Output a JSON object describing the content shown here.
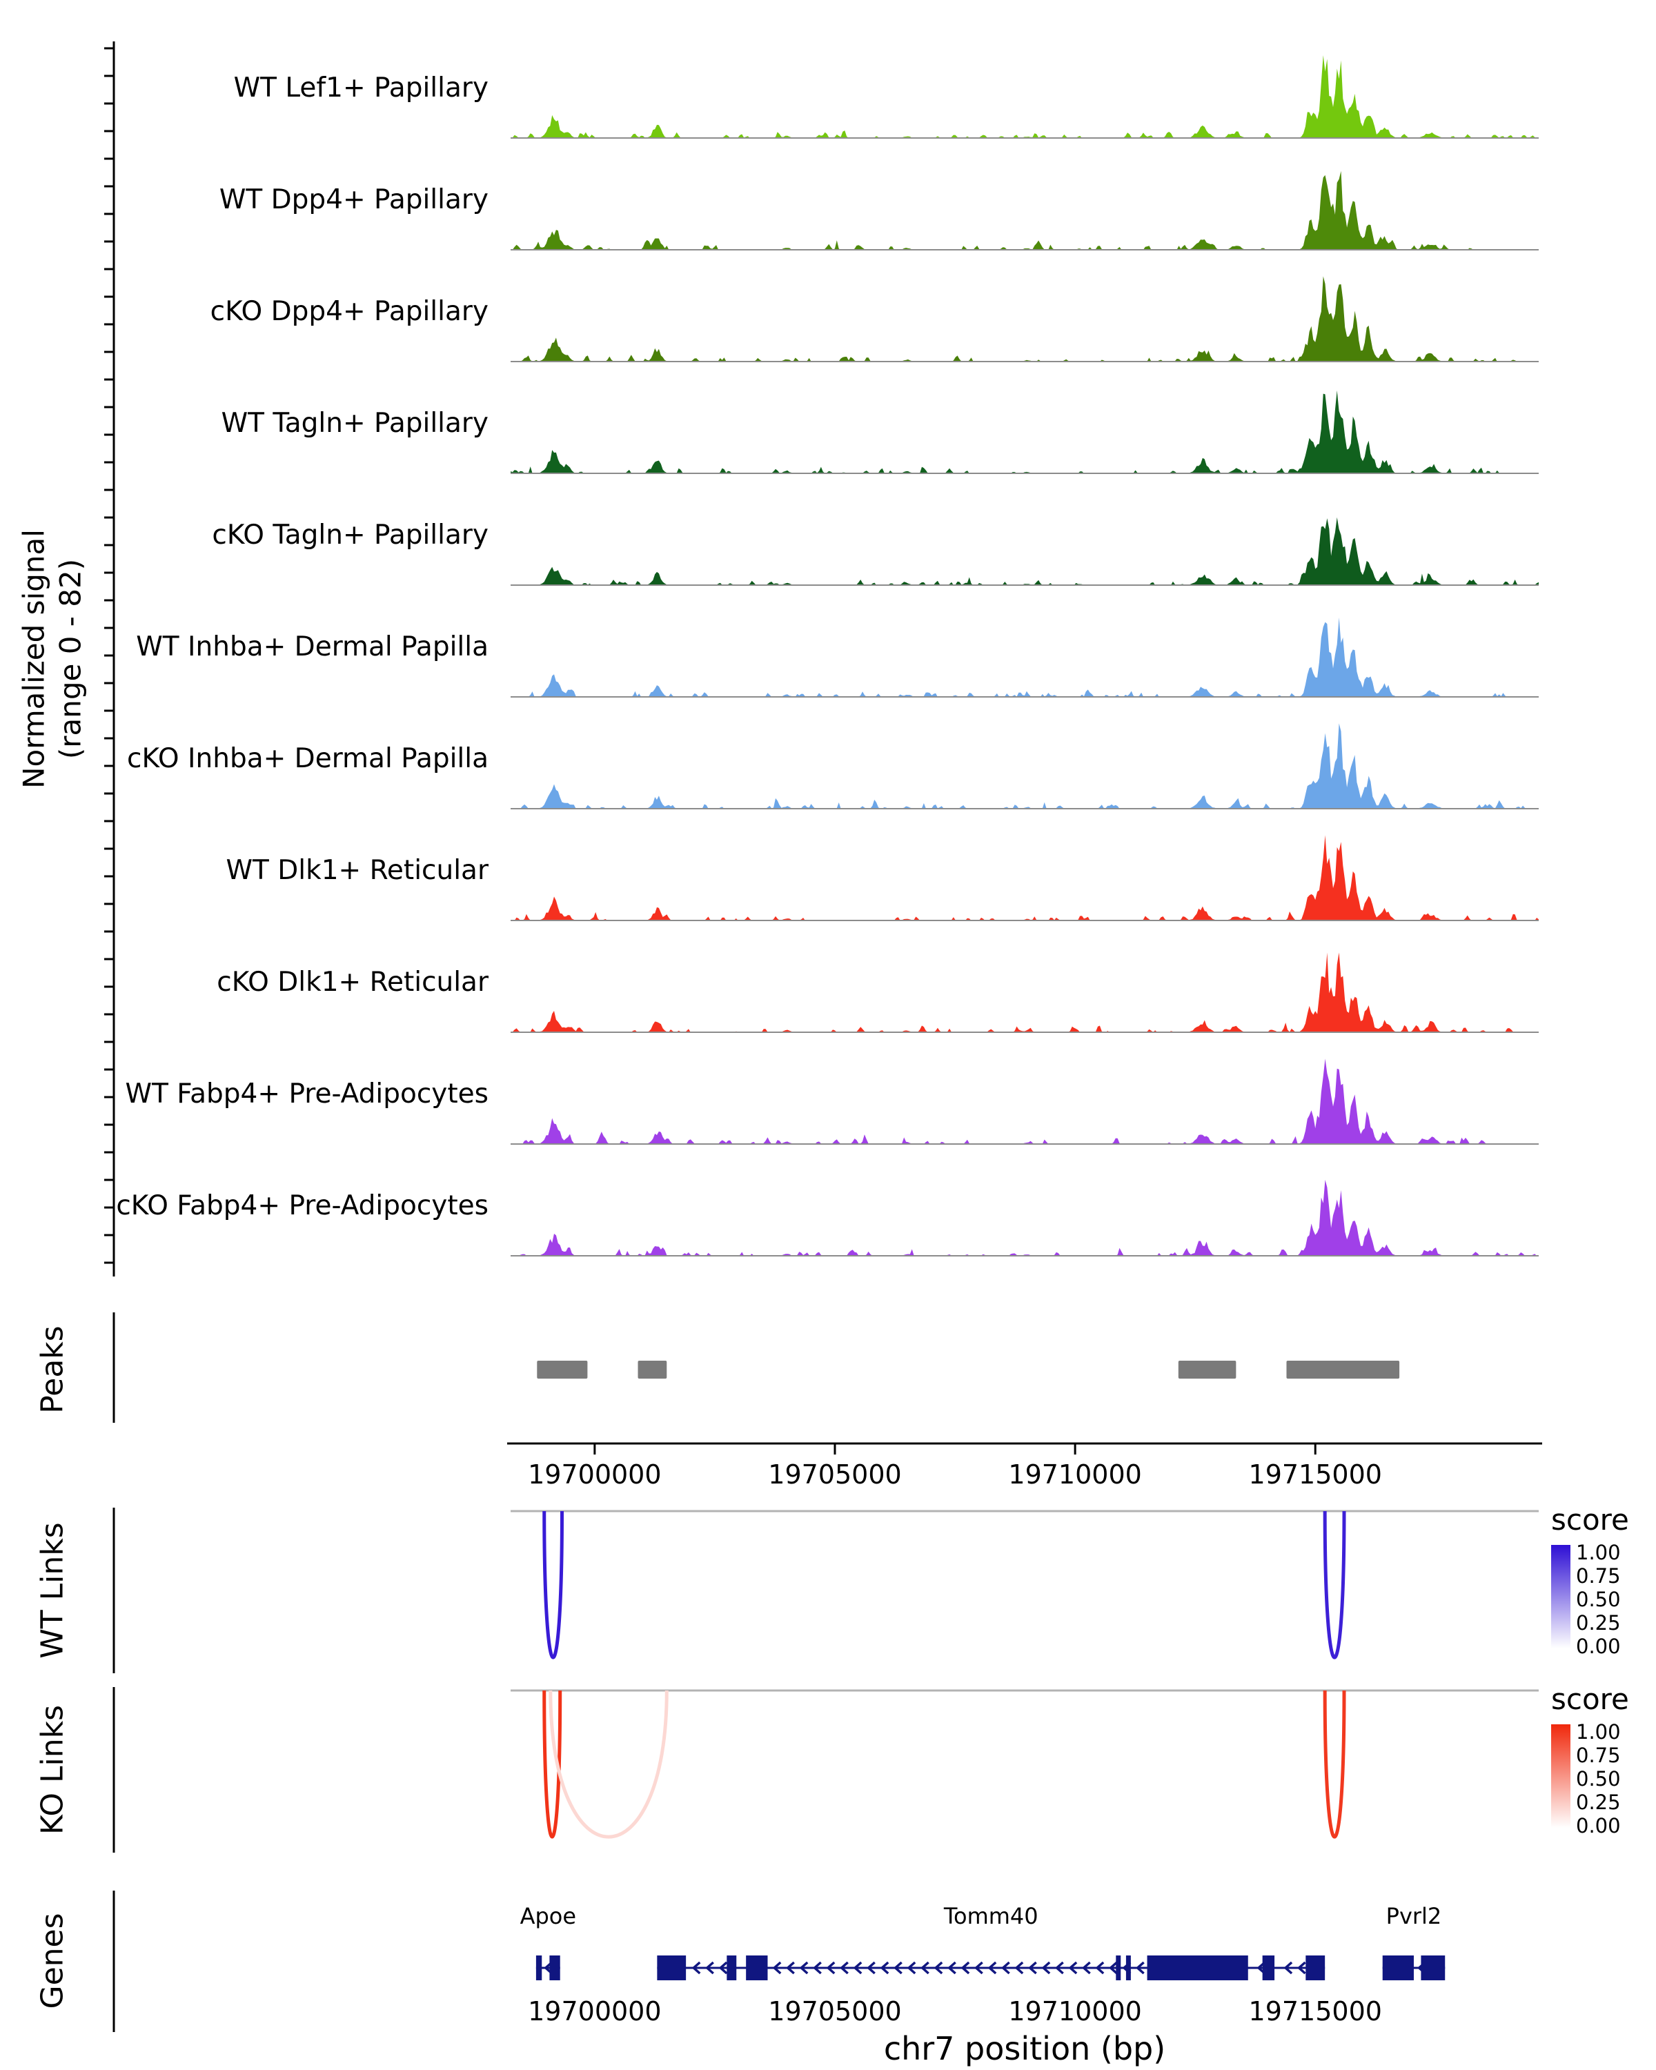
{
  "y_axis": {
    "label_line1": "Normalized signal",
    "label_line2": "(range 0 - 82)"
  },
  "x_axis": {
    "title": "chr7 position (bp)",
    "ticks": [
      19700000,
      19705000,
      19710000,
      19715000
    ],
    "tick_labels": [
      "19700000",
      "19705000",
      "19710000",
      "19715000"
    ]
  },
  "sections": {
    "peaks": "Peaks",
    "wt_links": "WT Links",
    "ko_links": "KO Links",
    "genes": "Genes"
  },
  "chart_data": {
    "type": "area",
    "title": "",
    "region": {
      "chrom": "chr7",
      "start": 19698250,
      "end": 19719650
    },
    "signal_range": [
      0,
      82
    ],
    "tracks": [
      {
        "name": "WT Lef1+ Papillary",
        "color": "#74C80E",
        "scale": 1.0
      },
      {
        "name": "WT Dpp4+ Papillary",
        "color": "#4E8A0A",
        "scale": 0.97
      },
      {
        "name": "cKO Dpp4+ Papillary",
        "color": "#497F08",
        "scale": 1.0
      },
      {
        "name": "WT Tagln+ Papillary",
        "color": "#11611E",
        "scale": 1.05
      },
      {
        "name": "cKO Tagln+ Papillary",
        "color": "#0F5B1D",
        "scale": 0.92
      },
      {
        "name": "WT Inhba+ Dermal Papilla",
        "color": "#6CA6E8",
        "scale": 0.95
      },
      {
        "name": "cKO Inhba+ Dermal Papilla",
        "color": "#6CA6E8",
        "scale": 1.02
      },
      {
        "name": "WT Dlk1+ Reticular",
        "color": "#F5301F",
        "scale": 0.95
      },
      {
        "name": "cKO Dlk1+ Reticular",
        "color": "#F5301F",
        "scale": 0.93
      },
      {
        "name": "WT Fabp4+ Pre-Adipocytes",
        "color": "#A040E8",
        "scale": 1.0
      },
      {
        "name": "cKO Fabp4+ Pre-Adipocytes",
        "color": "#A040E8",
        "scale": 0.9
      }
    ],
    "signal_profile": [
      {
        "c": 19699150,
        "s": 110,
        "h": 0.24
      },
      {
        "c": 19699450,
        "s": 60,
        "h": 0.06
      },
      {
        "c": 19701300,
        "s": 80,
        "h": 0.14
      },
      {
        "c": 19704000,
        "s": 60,
        "h": 0.03
      },
      {
        "c": 19706500,
        "s": 60,
        "h": 0.025
      },
      {
        "c": 19709000,
        "s": 60,
        "h": 0.02
      },
      {
        "c": 19712650,
        "s": 110,
        "h": 0.13
      },
      {
        "c": 19713350,
        "s": 80,
        "h": 0.06
      },
      {
        "c": 19714900,
        "s": 80,
        "h": 0.35
      },
      {
        "c": 19715200,
        "s": 90,
        "h": 0.95
      },
      {
        "c": 19715500,
        "s": 90,
        "h": 0.85
      },
      {
        "c": 19715800,
        "s": 80,
        "h": 0.55
      },
      {
        "c": 19716100,
        "s": 80,
        "h": 0.32
      },
      {
        "c": 19716450,
        "s": 90,
        "h": 0.13
      },
      {
        "c": 19717400,
        "s": 110,
        "h": 0.07
      }
    ],
    "peaks": [
      [
        19698800,
        19699850
      ],
      [
        19700900,
        19701500
      ],
      [
        19712150,
        19713350
      ],
      [
        19714400,
        19716750
      ]
    ],
    "peak_color": "#7A7A7A",
    "wt_links": {
      "legend_title": "score",
      "legend_ticks": [
        "1.00",
        "0.75",
        "0.50",
        "0.25",
        "0.00"
      ],
      "high_color": "#2E0FD4",
      "links": [
        {
          "start": 19698950,
          "end": 19699320,
          "score": 0.95
        },
        {
          "start": 19715200,
          "end": 19715600,
          "score": 0.93
        }
      ]
    },
    "ko_links": {
      "legend_title": "score",
      "legend_ticks": [
        "1.00",
        "0.75",
        "0.50",
        "0.25",
        "0.00"
      ],
      "high_color": "#F0280C",
      "links": [
        {
          "start": 19698950,
          "end": 19699280,
          "score": 0.95
        },
        {
          "start": 19699080,
          "end": 19701500,
          "score": 0.18
        },
        {
          "start": 19715200,
          "end": 19715600,
          "score": 0.92
        }
      ]
    },
    "genes": {
      "color": "#101680",
      "items": [
        {
          "name": "Apoe",
          "start": 19698780,
          "end": 19699280,
          "strand": "-",
          "exons": [
            [
              19698780,
              19698900
            ],
            [
              19699060,
              19699280
            ]
          ]
        },
        {
          "name": "Tomm40",
          "start": 19701300,
          "end": 19715200,
          "strand": "-",
          "exons": [
            [
              19701300,
              19701900
            ],
            [
              19702750,
              19702950
            ],
            [
              19703150,
              19703600
            ],
            [
              19710850,
              19710950
            ],
            [
              19711060,
              19711160
            ],
            [
              19711500,
              19713600
            ],
            [
              19713900,
              19714150
            ],
            [
              19714800,
              19715200
            ]
          ]
        },
        {
          "name": "Pvrl2",
          "start": 19716400,
          "end": 19717700,
          "strand": "-",
          "exons": [
            [
              19716400,
              19717050
            ],
            [
              19717200,
              19717700
            ]
          ]
        }
      ]
    }
  }
}
